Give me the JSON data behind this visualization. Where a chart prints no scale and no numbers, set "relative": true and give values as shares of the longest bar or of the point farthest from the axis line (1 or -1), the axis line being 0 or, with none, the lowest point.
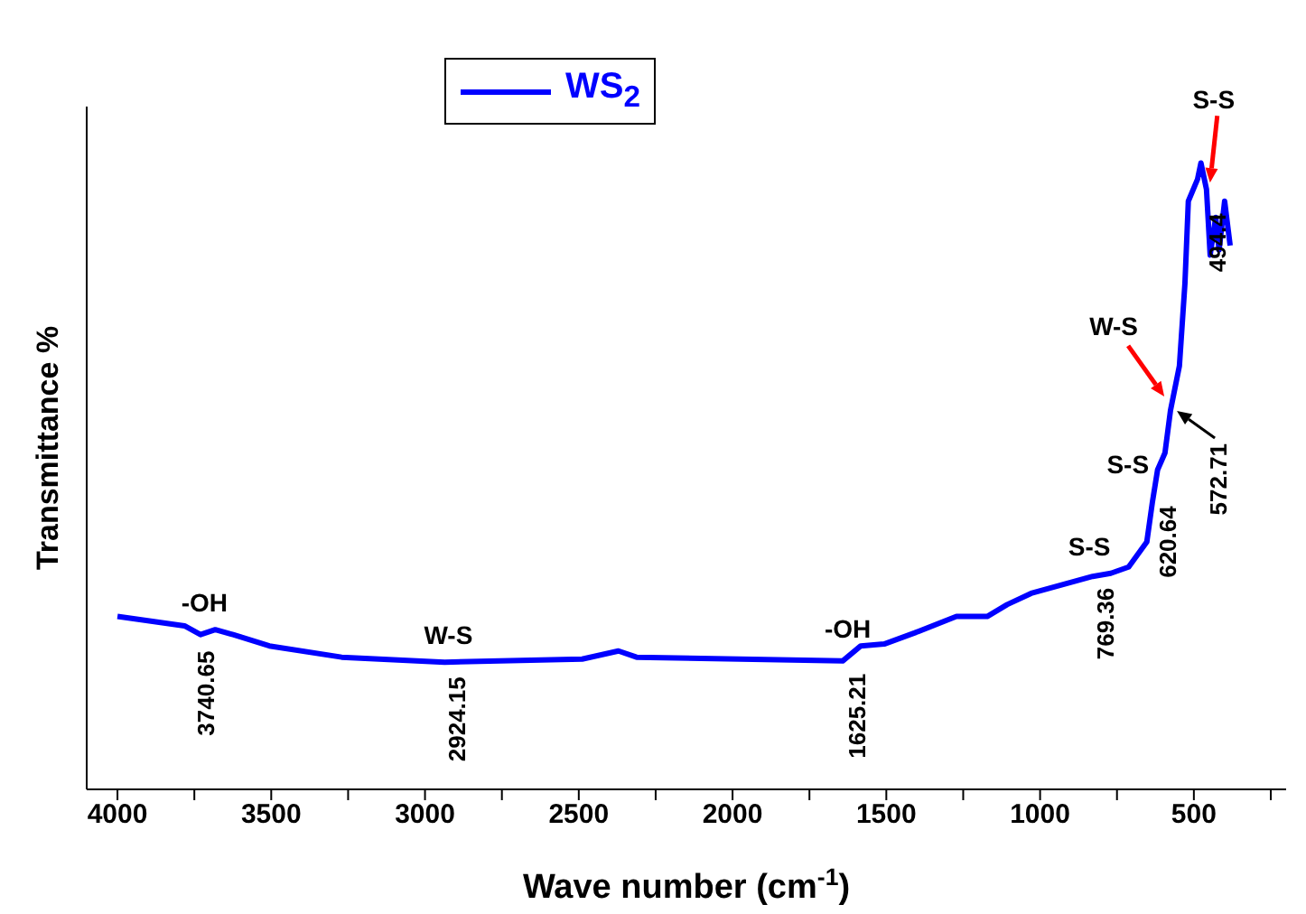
{
  "chart_data": {
    "type": "line",
    "relative": true,
    "xlabel": "Wave number (cm$^{-1}$)",
    "ylabel": "Transmittance %",
    "legend": "top left",
    "xlim": [
      4100,
      200
    ],
    "xticks": [
      4000,
      {
        "value": 3750,
        "label": null
      },
      3500,
      {
        "value": 3250,
        "label": null
      },
      3000,
      {
        "value": 2750,
        "label": null
      },
      2500,
      {
        "value": 2250,
        "label": null
      },
      2000,
      {
        "value": 1750,
        "label": null
      },
      1500,
      {
        "value": 1250,
        "label": null
      },
      1000,
      {
        "value": 750,
        "label": null
      },
      500,
      {
        "value": 250,
        "label": null
      }
    ],
    "series": [
      {
        "name": "WS$_{2}$",
        "color": "#0000ff",
        "x": [
          4000,
          3782,
          3730,
          3682,
          3624,
          3506,
          3271,
          2936,
          2489,
          2371,
          2312,
          1642,
          1583,
          1507,
          1407,
          1272,
          1223,
          1172,
          1107,
          1029,
          829,
          770,
          712,
          653,
          635,
          618,
          594,
          576,
          547,
          529,
          518,
          488,
          477,
          459,
          447,
          429,
          418,
          400,
          382
        ],
        "values": [
          0.276,
          0.261,
          0.247,
          0.255,
          0.247,
          0.229,
          0.211,
          0.203,
          0.208,
          0.221,
          0.211,
          0.205,
          0.229,
          0.232,
          0.25,
          0.276,
          0.276,
          0.276,
          0.295,
          0.313,
          0.34,
          0.345,
          0.355,
          0.395,
          0.458,
          0.51,
          0.537,
          0.605,
          0.676,
          0.808,
          0.939,
          0.974,
          1.0,
          0.958,
          0.853,
          0.913,
          0.861,
          0.939,
          0.868
        ]
      }
    ],
    "annotations": [
      {
        "text": "-OH",
        "x": 3740.65,
        "y": 0.25
      },
      {
        "text": "3740.65",
        "x": 3740.65,
        "y": 0.25
      },
      {
        "text": "W-S",
        "x": 2924.15,
        "y": 0.203
      },
      {
        "text": "2924.15",
        "x": 2924.15,
        "y": 0.203
      },
      {
        "text": "-OH",
        "x": 1625.21,
        "y": 0.208
      },
      {
        "text": "1625.21",
        "x": 1625.21,
        "y": 0.208
      },
      {
        "text": "S-S",
        "x": 769.36,
        "y": 0.345
      },
      {
        "text": "769.36",
        "x": 769.36,
        "y": 0.345
      },
      {
        "text": "S-S",
        "x": 620.64,
        "y": 0.51
      },
      {
        "text": "620.64",
        "x": 620.64,
        "y": 0.51
      },
      {
        "text": "W-S",
        "x": 572.71,
        "y": 0.61
      },
      {
        "text": "572.71",
        "x": 572.71,
        "y": 0.61
      },
      {
        "text": "S-S",
        "x": 494.4,
        "y": 0.96
      },
      {
        "text": "494.4",
        "x": 494.4,
        "y": 0.96
      }
    ]
  }
}
